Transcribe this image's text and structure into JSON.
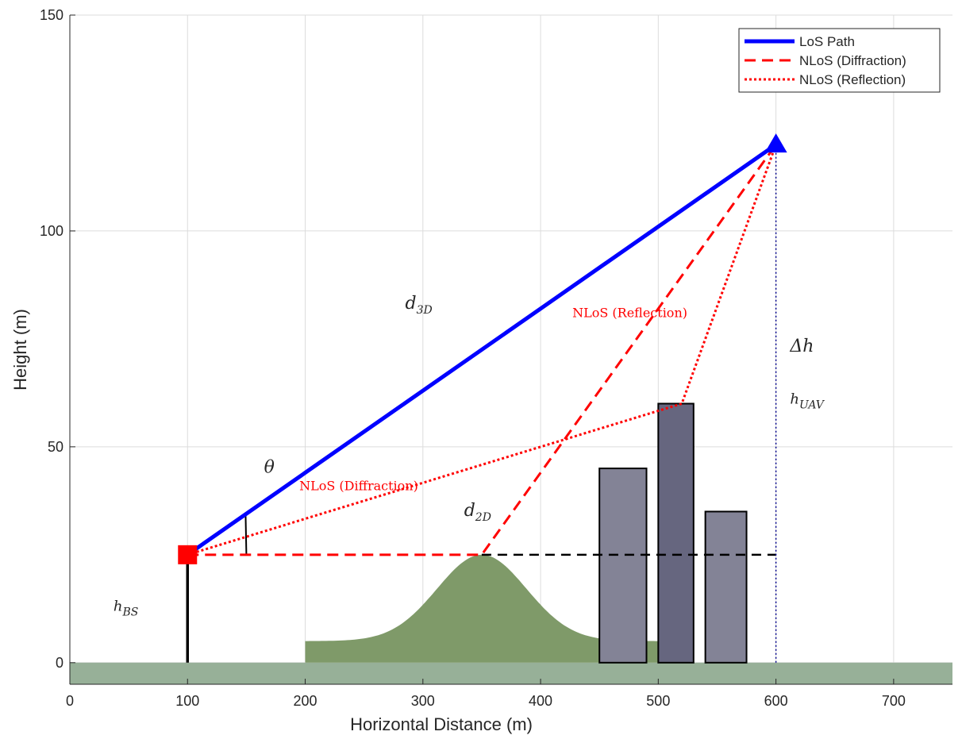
{
  "chart_data": {
    "type": "line",
    "xlabel": "Horizontal Distance (m)",
    "ylabel": "Height (m)",
    "xlim": [
      0,
      750
    ],
    "ylim": [
      -5,
      150
    ],
    "x_ticks": [
      0,
      100,
      200,
      300,
      400,
      500,
      600,
      700
    ],
    "y_ticks": [
      0,
      50,
      100,
      150
    ],
    "grid": true,
    "legend_position": "top-right",
    "legend": [
      {
        "label": "LoS Path",
        "color": "#0000ff",
        "style": "solid"
      },
      {
        "label": "NLoS (Diffraction)",
        "color": "#ff0000",
        "style": "dashed"
      },
      {
        "label": "NLoS (Reflection)",
        "color": "#ff0000",
        "style": "dotted"
      }
    ],
    "ground": {
      "y_range": [
        -5,
        0
      ],
      "color": "#97b098"
    },
    "hill": {
      "x_range": [
        200,
        500
      ],
      "base_height": 5,
      "peak_x": 350,
      "peak_height": 25,
      "sigma": 38,
      "color": "#7f9a69"
    },
    "buildings": [
      {
        "x": [
          450,
          490
        ],
        "height": 45,
        "color": "#838396"
      },
      {
        "x": [
          500,
          530
        ],
        "height": 60,
        "color": "#66667f"
      },
      {
        "x": [
          540,
          575
        ],
        "height": 35,
        "color": "#838396"
      }
    ],
    "base_station": {
      "x": 100,
      "y": 25,
      "marker": "square",
      "color": "#ff0000"
    },
    "uav": {
      "x": 600,
      "y": 120,
      "marker": "triangle",
      "color": "#0000ff"
    },
    "series": [
      {
        "name": "LoS Path",
        "x": [
          100,
          600
        ],
        "y": [
          25,
          120
        ]
      },
      {
        "name": "NLoS (Diffraction)",
        "x": [
          100,
          350,
          600
        ],
        "y": [
          25,
          25,
          120
        ]
      },
      {
        "name": "NLoS (Reflection)",
        "x": [
          100,
          520,
          600
        ],
        "y": [
          25,
          60,
          120
        ]
      }
    ],
    "reference_lines": [
      {
        "kind": "horizontal-dashed",
        "x": [
          350,
          600
        ],
        "y": [
          25,
          25
        ],
        "color": "#000000"
      },
      {
        "kind": "vertical-dotted",
        "x": [
          600,
          600
        ],
        "y": [
          0,
          120
        ],
        "color": "#00008b"
      },
      {
        "kind": "mast",
        "x": [
          100,
          100
        ],
        "y": [
          0,
          25
        ],
        "color": "#000000"
      },
      {
        "kind": "angle-arc",
        "center": [
          100,
          25
        ],
        "radius_x": 50
      }
    ],
    "annotations": [
      {
        "id": "d3d",
        "text": "d",
        "sub": "3D",
        "x": 285,
        "y": 82,
        "kind": "math"
      },
      {
        "id": "d2d",
        "text": "d",
        "sub": "2D",
        "x": 335,
        "y": 34,
        "kind": "math"
      },
      {
        "id": "theta",
        "text": "θ",
        "sub": "",
        "x": 165,
        "y": 44,
        "kind": "math"
      },
      {
        "id": "dh",
        "text": "Δh",
        "sub": "",
        "x": 612,
        "y": 72,
        "kind": "math"
      },
      {
        "id": "huav",
        "text": "h",
        "sub": "UAV",
        "x": 612,
        "y": 60,
        "kind": "math-small"
      },
      {
        "id": "hbs",
        "text": "h",
        "sub": "BS",
        "x": 37,
        "y": 12,
        "kind": "math-small"
      },
      {
        "id": "nlos_refl",
        "text": "NLoS (Reflection)",
        "sub": "",
        "x": 427,
        "y": 80,
        "kind": "red"
      },
      {
        "id": "nlos_diff",
        "text": "NLoS (Diffraction)",
        "sub": "",
        "x": 195,
        "y": 40,
        "kind": "red"
      }
    ]
  }
}
